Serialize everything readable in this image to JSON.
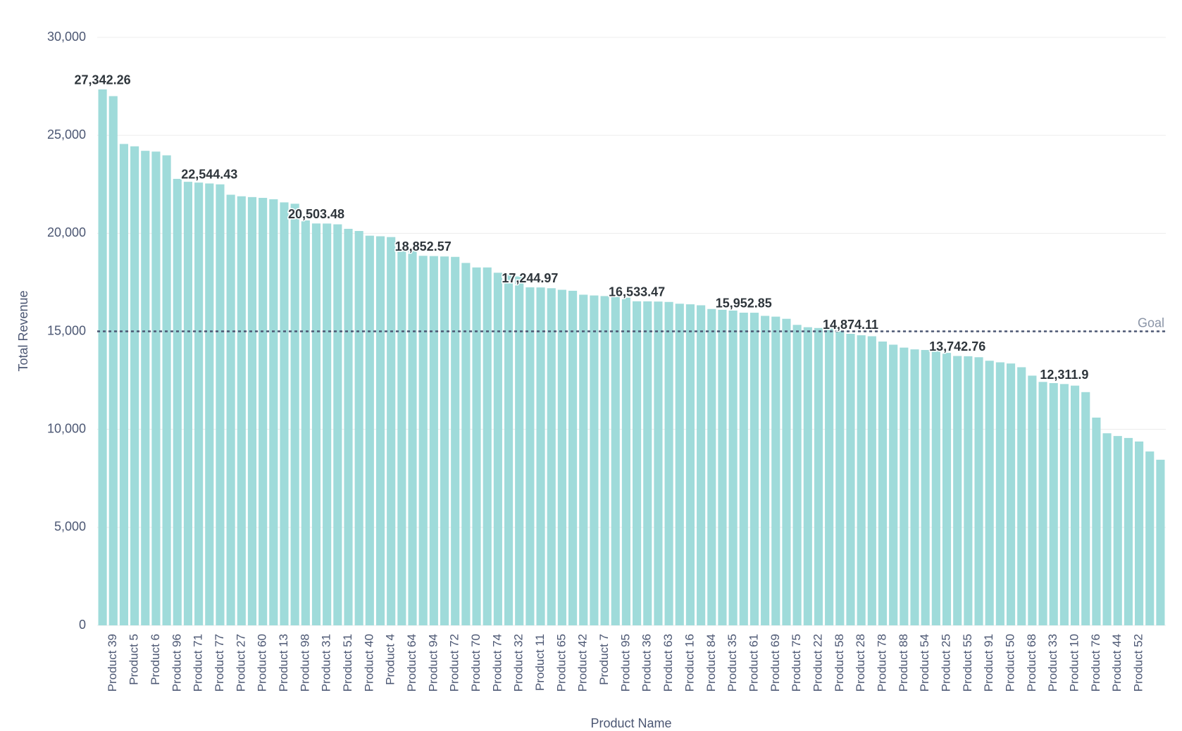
{
  "chart_data": {
    "type": "bar",
    "x_label": "Product Name",
    "y_label": "Total Revenue",
    "color": "#9fdbda",
    "grid": true,
    "ylim": [
      0,
      30000
    ],
    "yticks": [
      0,
      {
        "value": 5000,
        "label": "5,000"
      },
      {
        "value": 10000,
        "label": "10,000"
      },
      {
        "value": 15000,
        "label": "15,000"
      },
      {
        "value": 20000,
        "label": "20,000"
      },
      {
        "value": 25000,
        "label": "25,000"
      },
      {
        "value": 30000,
        "label": "30,000"
      }
    ],
    "goal": {
      "value": 15000,
      "label": "Goal"
    },
    "categories": [
      null,
      "Product 39",
      null,
      "Product 5",
      null,
      "Product 6",
      null,
      "Product 96",
      null,
      "Product 71",
      null,
      "Product 77",
      null,
      "Product 27",
      null,
      "Product 60",
      null,
      "Product 13",
      null,
      "Product 98",
      null,
      "Product 31",
      null,
      "Product 51",
      null,
      "Product 40",
      null,
      "Product 4",
      null,
      "Product 64",
      null,
      "Product 94",
      null,
      "Product 72",
      null,
      "Product 70",
      null,
      "Product 74",
      null,
      "Product 32",
      null,
      "Product 11",
      null,
      "Product 65",
      null,
      "Product 42",
      null,
      "Product 7",
      null,
      "Product 95",
      null,
      "Product 36",
      null,
      "Product 63",
      null,
      "Product 16",
      null,
      "Product 84",
      null,
      "Product 35",
      null,
      "Product 61",
      null,
      "Product 69",
      null,
      "Product 75",
      null,
      "Product 22",
      null,
      "Product 58",
      null,
      "Product 28",
      null,
      "Product 78",
      null,
      "Product 88",
      null,
      "Product 54",
      null,
      "Product 25",
      null,
      "Product 55",
      null,
      "Product 91",
      null,
      "Product 50",
      null,
      "Product 68",
      null,
      "Product 33",
      null,
      "Product 10",
      null,
      "Product 76",
      null,
      "Product 44",
      null,
      "Product 52",
      null,
      null
    ],
    "values": [
      27342.26,
      27000,
      24560,
      24440,
      24210,
      24170,
      23980,
      22780,
      22630,
      22590,
      22544.43,
      22500,
      21970,
      21890,
      21850,
      21810,
      21740,
      21580,
      21510,
      20660,
      20503.48,
      20500,
      20460,
      20230,
      20120,
      19880,
      19850,
      19810,
      19270,
      19190,
      18852.57,
      18840,
      18820,
      18800,
      18490,
      18260,
      18260,
      17990,
      17910,
      17800,
      17244.97,
      17240,
      17200,
      17120,
      17070,
      16870,
      16830,
      16800,
      16760,
      16720,
      16533.47,
      16530,
      16520,
      16500,
      16410,
      16380,
      16330,
      16140,
      16100,
      16060,
      15952.85,
      15950,
      15790,
      15750,
      15640,
      15330,
      15210,
      15170,
      15140,
      15020,
      14874.11,
      14800,
      14750,
      14480,
      14320,
      14170,
      14080,
      14050,
      13980,
      13900,
      13742.76,
      13730,
      13680,
      13500,
      13420,
      13360,
      13170,
      12740,
      12420,
      12360,
      12311.9,
      12230,
      11900,
      10600,
      9800,
      9660,
      9560,
      9380,
      8870,
      8450
    ],
    "value_labels": [
      "27,342.26",
      null,
      null,
      null,
      null,
      null,
      null,
      null,
      null,
      null,
      "22,544.43",
      null,
      null,
      null,
      null,
      null,
      null,
      null,
      null,
      null,
      "20,503.48",
      null,
      null,
      null,
      null,
      null,
      null,
      null,
      null,
      null,
      "18,852.57",
      null,
      null,
      null,
      null,
      null,
      null,
      null,
      null,
      null,
      "17,244.97",
      null,
      null,
      null,
      null,
      null,
      null,
      null,
      null,
      null,
      "16,533.47",
      null,
      null,
      null,
      null,
      null,
      null,
      null,
      null,
      null,
      "15,952.85",
      null,
      null,
      null,
      null,
      null,
      null,
      null,
      null,
      null,
      "14,874.11",
      null,
      null,
      null,
      null,
      null,
      null,
      null,
      null,
      null,
      "13,742.76",
      null,
      null,
      null,
      null,
      null,
      null,
      null,
      null,
      null,
      "12,311.9",
      null,
      null,
      null,
      null,
      null,
      null,
      null,
      null,
      null
    ]
  }
}
